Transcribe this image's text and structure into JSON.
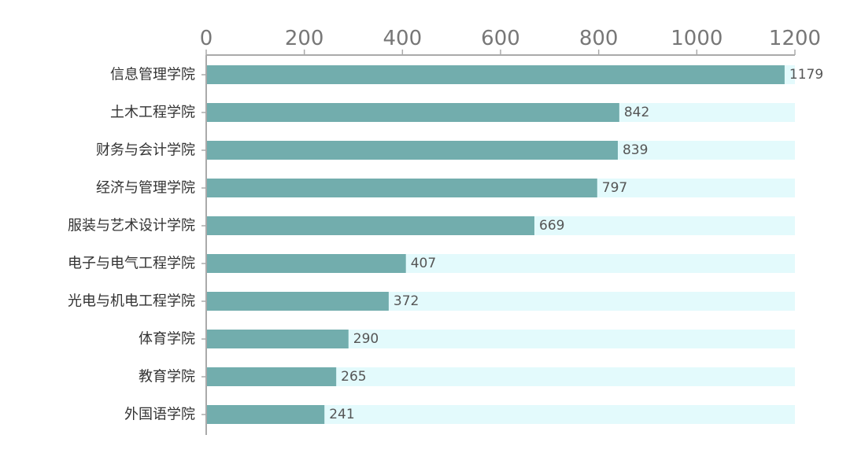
{
  "chart_data": {
    "type": "bar",
    "orientation": "horizontal",
    "title": "",
    "xlabel": "",
    "ylabel": "",
    "xlim": [
      0,
      1200
    ],
    "x_ticks": [
      0,
      200,
      400,
      600,
      800,
      1000,
      1200
    ],
    "x_tick_labels": [
      "0",
      "200",
      "400",
      "600",
      "800",
      "1000",
      "1200"
    ],
    "x_axis_position": "top",
    "grid": false,
    "legend": "none",
    "categories": [
      "信息管理学院",
      "土木工程学院",
      "财务与会计学院",
      "经济与管理学院",
      "服装与艺术设计学院",
      "电子与电气工程学院",
      "光电与机电工程学院",
      "体育学院",
      "教育学院",
      "外国语学院"
    ],
    "values": [
      1179,
      842,
      839,
      797,
      669,
      407,
      372,
      290,
      265,
      241
    ],
    "data_labels": [
      "1179",
      "842",
      "839",
      "797",
      "669",
      "407",
      "372",
      "290",
      "265",
      "241"
    ],
    "colors": {
      "bar": "#72adad",
      "track": "#e3fafc",
      "axis": "#aaaaaa"
    }
  }
}
